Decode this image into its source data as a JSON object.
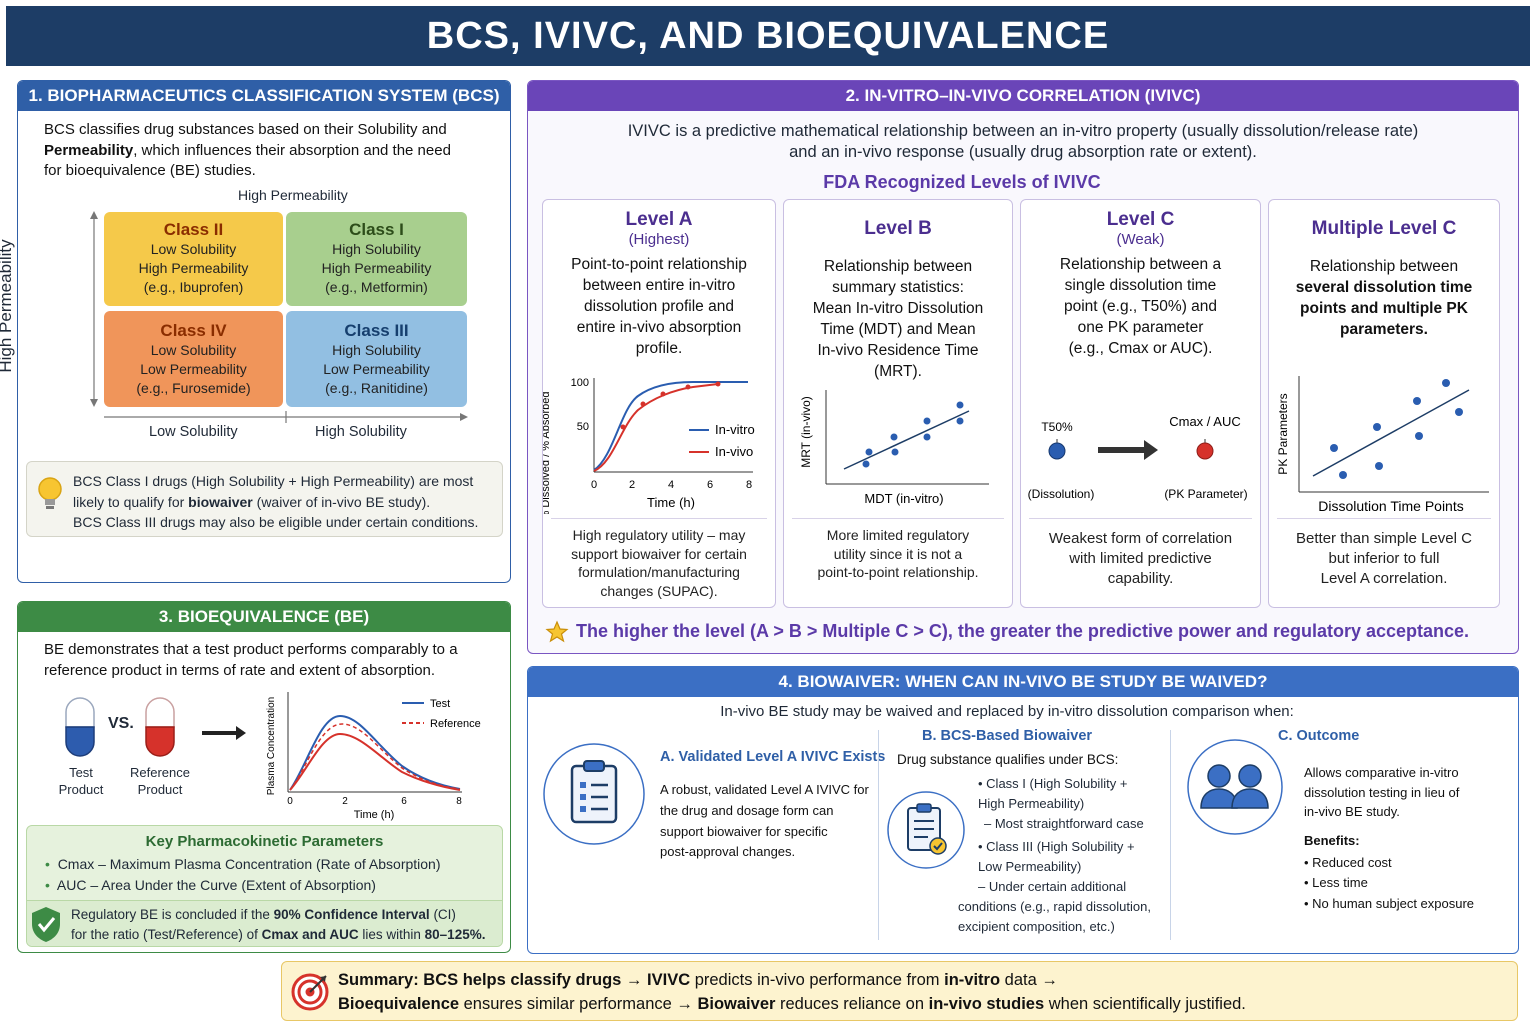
{
  "title": "BCS, IVIVC, AND BIOEQUIVALENCE",
  "bcs": {
    "header": "1. BIOPHARMACEUTICS CLASSIFICATION SYSTEM (BCS)",
    "intro": [
      "BCS classifies drug substances based on their Solubility and",
      "Permeability",
      ", which influences their absorption and the need",
      "for bioequivalence (BE) studies."
    ],
    "top_axis": "High Permeability",
    "left_axis": "High Permeability",
    "bottom_left": "Low Solubility",
    "bottom_right": "High Solubility",
    "classes": [
      {
        "name": "Class II",
        "sol": "Low Solubility",
        "perm": "High Permeability",
        "ex": "(e.g., Ibuprofen)",
        "color": "#f5c94a"
      },
      {
        "name": "Class I",
        "sol": "High Solubility",
        "perm": "High Permeability",
        "ex": "(e.g., Metformin)",
        "color": "#a8cf8e"
      },
      {
        "name": "Class IV",
        "sol": "Low Solubility",
        "perm": "Low Permeability",
        "ex": "(e.g., Furosemide)",
        "color": "#f0955a"
      },
      {
        "name": "Class III",
        "sol": "High Solubility",
        "perm": "Low Permeability",
        "ex": "(e.g., Ranitidine)",
        "color": "#92bfe2"
      }
    ],
    "note": [
      "BCS Class I drugs (High Solubility + High Permeability) are most",
      "likely to qualify for ",
      "biowaiver",
      " (waiver of in-vivo BE study).",
      "BCS Class III drugs may also be eligible under certain conditions."
    ]
  },
  "ivivc": {
    "header": "2. IN-VITRO–IN-VIVO CORRELATION (IVIVC)",
    "intro": [
      "IVIVC is a predictive mathematical relationship between an in-vitro property (usually dissolution/release rate)",
      "and an in-vivo response (usually drug absorption rate or extent)."
    ],
    "subtitle": "FDA Recognized Levels of IVIVC",
    "levels": [
      {
        "title": "Level A",
        "sub": "(Highest)",
        "desc": [
          "Point-to-point relationship",
          "between entire in-vitro",
          "dissolution profile and",
          "entire in-vivo absorption",
          "profile."
        ],
        "foot": [
          "High regulatory utility – may",
          "support biowaiver for certain",
          "formulation/manufacturing",
          "changes (SUPAC)."
        ]
      },
      {
        "title": "Level B",
        "sub": "",
        "desc": [
          "Relationship between",
          "summary statistics:",
          "Mean In-vitro Dissolution",
          "Time (MDT) and Mean",
          "In-vivo Residence Time",
          "(MRT)."
        ],
        "foot": [
          "More limited regulatory",
          "utility since it is not a",
          "point-to-point relationship."
        ]
      },
      {
        "title": "Level C",
        "sub": "(Weak)",
        "desc": [
          "Relationship between a",
          "single dissolution time",
          "point (e.g., T50%) and",
          "one PK parameter",
          "(e.g., Cmax or AUC)."
        ],
        "foot": [
          "Weakest form of correlation",
          "with limited predictive",
          "capability."
        ]
      },
      {
        "title": "Multiple Level C",
        "sub": "",
        "desc": [
          "Relationship between",
          "several dissolution time",
          "points and multiple PK",
          "parameters."
        ],
        "foot": [
          "Better than simple Level C",
          "but inferior to full",
          "Level A correlation."
        ]
      }
    ],
    "levelA_chart": {
      "ylabel": "% Dissolved / % Absorbed",
      "xlabel": "Time (h)",
      "yticks": [
        "100",
        "50"
      ],
      "xticks": [
        "0",
        "2",
        "4",
        "6",
        "8"
      ],
      "legend": [
        "In-vitro",
        "In-vivo"
      ]
    },
    "levelB_chart": {
      "ylabel": "MRT (in-vivo)",
      "xlabel": "MDT (in-vitro)"
    },
    "levelC_chart": {
      "left_top": "T50%",
      "left_bottom": "(Dissolution)",
      "right_top": "Cmax / AUC",
      "right_bottom": "(PK Parameter)"
    },
    "multiC_chart": {
      "ylabel": "PK Parameters",
      "xlabel": "Dissolution Time Points"
    },
    "footer": "The higher the level (A > B > Multiple C > C), the greater the predictive power and regulatory acceptance."
  },
  "be": {
    "header": "3. BIOEQUIVALENCE (BE)",
    "intro": [
      "BE demonstrates that a test product performs comparably to a",
      "reference product in terms of rate and extent of absorption."
    ],
    "vs": "VS.",
    "test_label": [
      "Test",
      "Product"
    ],
    "ref_label": [
      "Reference",
      "Product"
    ],
    "chart": {
      "ylabel": "Plasma Concentration",
      "xlabel": "Time (h)",
      "xticks": [
        "0",
        "2",
        "6",
        "8"
      ],
      "legend": [
        "Test",
        "Reference"
      ]
    },
    "pk_title": "Key Pharmacokinetic Parameters",
    "pk_items": [
      "Cmax – Maximum Plasma Concentration (Rate of Absorption)",
      "AUC – Area Under the Curve (Extent of Absorption)"
    ],
    "reg": [
      "Regulatory BE is concluded if the ",
      "90% Confidence Interval",
      " (CI)",
      "for the ratio (Test/Reference) of ",
      "Cmax and AUC",
      " lies within ",
      "80–125%."
    ]
  },
  "biowaiver": {
    "header": "4. BIOWAIVER: WHEN CAN IN-VIVO BE STUDY BE WAIVED?",
    "intro": "In-vivo BE study may be waived and replaced by in-vitro dissolution comparison when:",
    "a": {
      "title": "A. Validated Level A IVIVC Exists",
      "text": [
        "A robust, validated Level A IVIVC for",
        "the drug and dosage form can",
        "support biowaiver for specific",
        "post-approval changes."
      ]
    },
    "b": {
      "title": "B. BCS-Based Biowaiver",
      "lead": "Drug substance qualifies under BCS:",
      "lines": [
        "• Class I (High Solubility +",
        "High Permeability)",
        "– Most straightforward case",
        "• Class III (High Solubility +",
        "Low Permeability)",
        "– Under certain additional",
        "conditions (e.g., rapid dissolution,",
        "excipient composition, etc.)"
      ]
    },
    "c": {
      "title": "C. Outcome",
      "text": [
        "Allows comparative in-vitro",
        "dissolution testing in lieu of",
        "in-vivo BE study."
      ],
      "benefits_title": "Benefits:",
      "benefits": [
        "• Reduced cost",
        "• Less time",
        "• No human subject exposure"
      ]
    }
  },
  "summary": {
    "line1": [
      "Summary: ",
      "BCS helps classify drugs → ",
      "IVIVC",
      " predicts in-vivo performance from ",
      "in-vitro",
      " data →"
    ],
    "line2": [
      "Bioequivalence",
      " ensures similar performance → ",
      "Biowaiver",
      " reduces reliance on ",
      "in-vivo studies",
      " when scientifically justified."
    ]
  },
  "colors": {
    "navy": "#1d3d66",
    "bcs": "#2f5fa7",
    "ivivc": "#6a45b8",
    "be": "#3d8b45",
    "biowaiver": "#3b6fc4",
    "invitro": "#2a5db0",
    "invivo": "#d6322b"
  }
}
